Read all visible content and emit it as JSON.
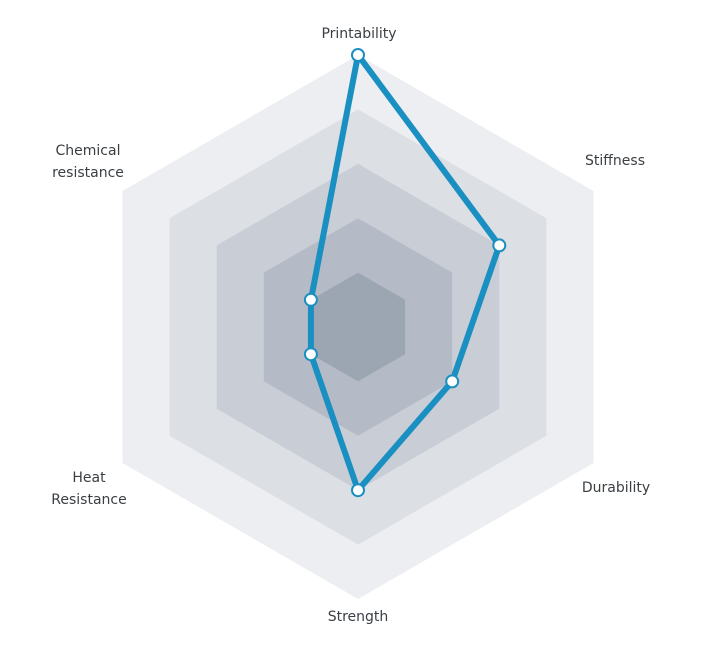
{
  "chart_data": {
    "type": "radar",
    "axes": [
      "Printability",
      "Stiffness",
      "Durability",
      "Strength",
      "Heat\nResistance",
      "Chemical\nresistance"
    ],
    "values": [
      5.0,
      3.0,
      2.0,
      3.0,
      1.0,
      1.0
    ],
    "range": [
      0,
      5
    ],
    "rings": 5,
    "line_color": "#1a8fc1",
    "ring_colors": [
      "#eceef1",
      "#dcdfe4",
      "#c9ced6",
      "#b4bbc6",
      "#9ca6b3"
    ]
  }
}
